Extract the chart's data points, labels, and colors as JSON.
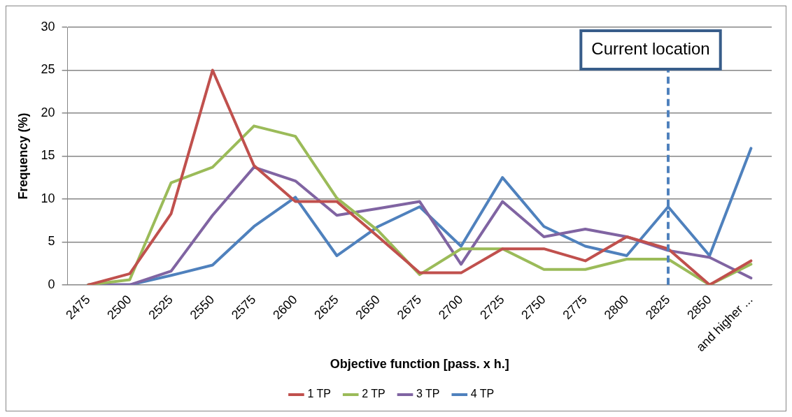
{
  "chart_data": {
    "type": "line",
    "xlabel": "Objective function [pass. x h.]",
    "ylabel": "Frequency (%)",
    "categories": [
      "2475",
      "2500",
      "2525",
      "2550",
      "2575",
      "2600",
      "2625",
      "2650",
      "2675",
      "2700",
      "2725",
      "2750",
      "2775",
      "2800",
      "2825",
      "2850",
      "and higher ..."
    ],
    "series": [
      {
        "name": "1 TP",
        "color": "#c0504d",
        "values": [
          0,
          1.3,
          8.3,
          25,
          13.9,
          9.7,
          9.7,
          5.6,
          1.4,
          1.4,
          4.2,
          4.2,
          2.8,
          5.6,
          4.2,
          0,
          2.8
        ]
      },
      {
        "name": "2 TP",
        "color": "#9bbb59",
        "values": [
          0,
          0.6,
          11.9,
          13.7,
          18.5,
          17.3,
          10.1,
          6.3,
          1.2,
          4.2,
          4.2,
          1.8,
          1.8,
          3.0,
          3.0,
          0,
          2.4
        ]
      },
      {
        "name": "3 TP",
        "color": "#8064a2",
        "values": [
          0,
          0,
          1.6,
          8.1,
          13.7,
          12.1,
          8.1,
          8.9,
          9.7,
          2.4,
          9.7,
          5.6,
          6.5,
          5.6,
          4.0,
          3.2,
          0.8
        ]
      },
      {
        "name": "4 TP",
        "color": "#4f81bd",
        "values": [
          0,
          0,
          1.1,
          2.3,
          6.8,
          10.2,
          3.4,
          6.8,
          9.1,
          4.5,
          12.5,
          6.8,
          4.5,
          3.4,
          9.1,
          3.4,
          15.9
        ]
      }
    ],
    "ylim": [
      0,
      30
    ],
    "yticks": [
      0,
      5,
      10,
      15,
      20,
      25,
      30
    ],
    "grid": "y",
    "legend": "bottom",
    "marker": "none",
    "line_style": "solid",
    "ref_lines": [
      {
        "axis": "x",
        "value": "2825",
        "label": "Current location",
        "color": "#4f81bd",
        "line_style": "dashed"
      }
    ]
  }
}
